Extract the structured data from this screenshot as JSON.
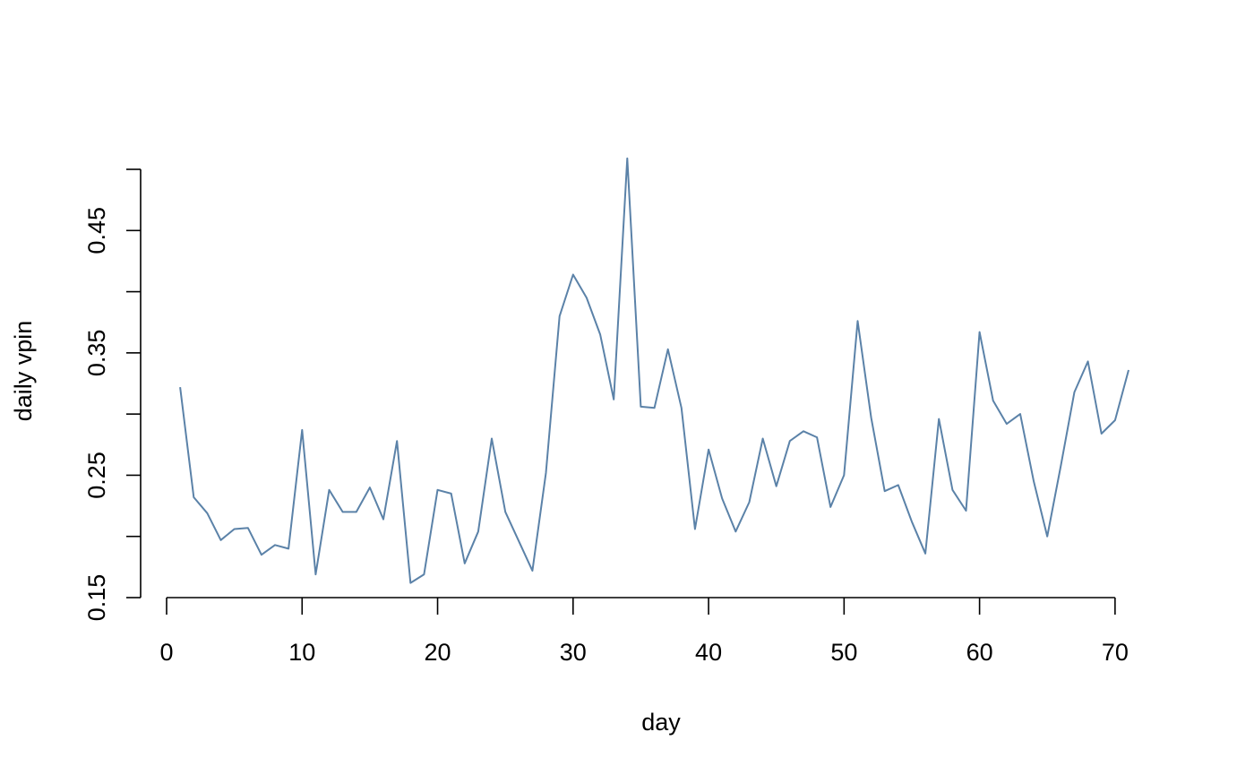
{
  "chart_data": {
    "type": "line",
    "title": "",
    "xlabel": "day",
    "ylabel": "daily vpin",
    "xlim": [
      0,
      71
    ],
    "ylim": [
      0.15,
      0.5
    ],
    "x_ticks": [
      0,
      10,
      20,
      30,
      40,
      50,
      60,
      70
    ],
    "x_tick_labels": [
      "0",
      "10",
      "20",
      "30",
      "40",
      "50",
      "60",
      "70"
    ],
    "y_ticks": [
      0.15,
      0.2,
      0.25,
      0.3,
      0.35,
      0.4,
      0.45,
      0.5
    ],
    "y_tick_labels": [
      "0.15",
      "",
      "0.25",
      "",
      "0.35",
      "",
      "0.45",
      ""
    ],
    "grid": false,
    "series": [
      {
        "color": "#5b82a8",
        "x": [
          1,
          2,
          3,
          4,
          5,
          6,
          7,
          8,
          9,
          10,
          11,
          12,
          13,
          14,
          15,
          16,
          17,
          18,
          19,
          20,
          21,
          22,
          23,
          24,
          25,
          26,
          27,
          28,
          29,
          30,
          31,
          32,
          33,
          34,
          35,
          36,
          37,
          38,
          39,
          40,
          41,
          42,
          43,
          44,
          45,
          46,
          47,
          48,
          49,
          50,
          51,
          52,
          53,
          54,
          55,
          56,
          57,
          58,
          59,
          60,
          61,
          62,
          63,
          64,
          65,
          66,
          67,
          68,
          69,
          70,
          71
        ],
        "y": [
          0.322,
          0.232,
          0.219,
          0.197,
          0.206,
          0.207,
          0.185,
          0.193,
          0.19,
          0.287,
          0.169,
          0.238,
          0.22,
          0.22,
          0.24,
          0.214,
          0.278,
          0.162,
          0.169,
          0.238,
          0.235,
          0.178,
          0.204,
          0.28,
          0.22,
          0.196,
          0.172,
          0.252,
          0.38,
          0.414,
          0.395,
          0.365,
          0.312,
          0.509,
          0.306,
          0.305,
          0.353,
          0.305,
          0.206,
          0.271,
          0.231,
          0.204,
          0.228,
          0.28,
          0.241,
          0.278,
          0.286,
          0.281,
          0.224,
          0.25,
          0.376,
          0.297,
          0.237,
          0.242,
          0.212,
          0.186,
          0.296,
          0.238,
          0.221,
          0.367,
          0.311,
          0.292,
          0.3,
          0.245,
          0.2,
          0.258,
          0.318,
          0.343,
          0.284,
          0.295,
          0.336
        ]
      }
    ]
  }
}
